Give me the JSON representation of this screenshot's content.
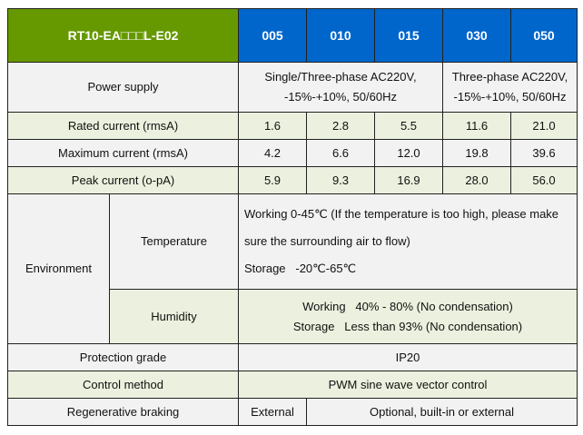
{
  "header": {
    "model": "RT10-EA□□□L-E02",
    "codes": [
      "005",
      "010",
      "015",
      "030",
      "050"
    ]
  },
  "power_supply": {
    "label": "Power supply",
    "group1": [
      "Single/Three-phase AC220V,",
      "-15%-+10%, 50/60Hz"
    ],
    "group2": [
      "Three-phase AC220V,",
      "-15%-+10%, 50/60Hz"
    ]
  },
  "rows": [
    {
      "label": "Rated current (rmsA)",
      "values": [
        "1.6",
        "2.8",
        "5.5",
        "11.6",
        "21.0"
      ]
    },
    {
      "label": "Maximum current (rmsA)",
      "values": [
        "4.2",
        "6.6",
        "12.0",
        "19.8",
        "39.6"
      ]
    },
    {
      "label": "Peak current (o-pA)",
      "values": [
        "5.9",
        "9.3",
        "16.9",
        "28.0",
        "56.0"
      ]
    }
  ],
  "environment": {
    "label": "Environment",
    "temperature": {
      "label": "Temperature",
      "lines": [
        "Working 0-45℃ (If the temperature is too high, please make",
        "sure the surrounding air to flow)",
        "Storage   -20℃-65℃"
      ]
    },
    "humidity": {
      "label": "Humidity",
      "lines": [
        "Working   40% - 80% (No condensation)",
        "Storage   Less than 93% (No condensation)"
      ]
    }
  },
  "protection": {
    "label": "Protection grade",
    "value": "IP20"
  },
  "control": {
    "label": "Control method",
    "value": "PWM sine wave vector control"
  },
  "braking": {
    "label": "Regenerative braking",
    "value1": "External",
    "value2": "Optional, built-in or external"
  }
}
